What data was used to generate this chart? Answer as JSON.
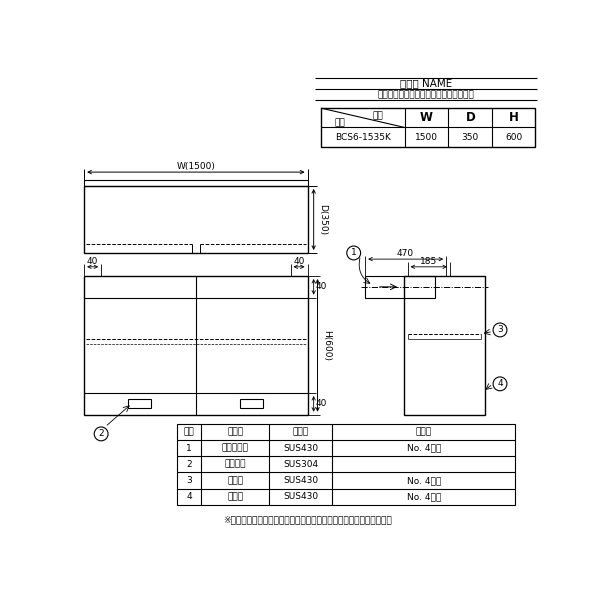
{
  "title_name": "品　名 NAME",
  "subtitle": "プリームシリーズ　吊戸棚　ケンドン戸",
  "model": "BCS6-1535K",
  "W": "1500",
  "D": "350",
  "H": "600",
  "bg_color": "#ffffff",
  "line_color": "#000000",
  "header_row1": "品　名 NAME",
  "header_row2": "プリームシリーズ　吊戸棚　ケンドン戸",
  "tbl_model": "BCS6-1535K",
  "tbl_W": "1500",
  "tbl_D": "350",
  "tbl_H": "600",
  "tbl_sunpo": "寸法",
  "tbl_katashiki": "型式",
  "parts_headers": [
    "部番",
    "品　名",
    "材　質",
    "備　考"
  ],
  "parts_rows": [
    [
      "1",
      "ケンドン戸",
      "SUS430",
      "No. 4仕上"
    ],
    [
      "2",
      "引戸取手",
      "SUS304",
      ""
    ],
    [
      "3",
      "自在棚",
      "SUS430",
      "No. 4仕上"
    ],
    [
      "4",
      "本　体",
      "SUS430",
      "No. 4仕上"
    ]
  ],
  "note": "※　改善の為、仕様及び外観を予告なしに変更することがあります。"
}
